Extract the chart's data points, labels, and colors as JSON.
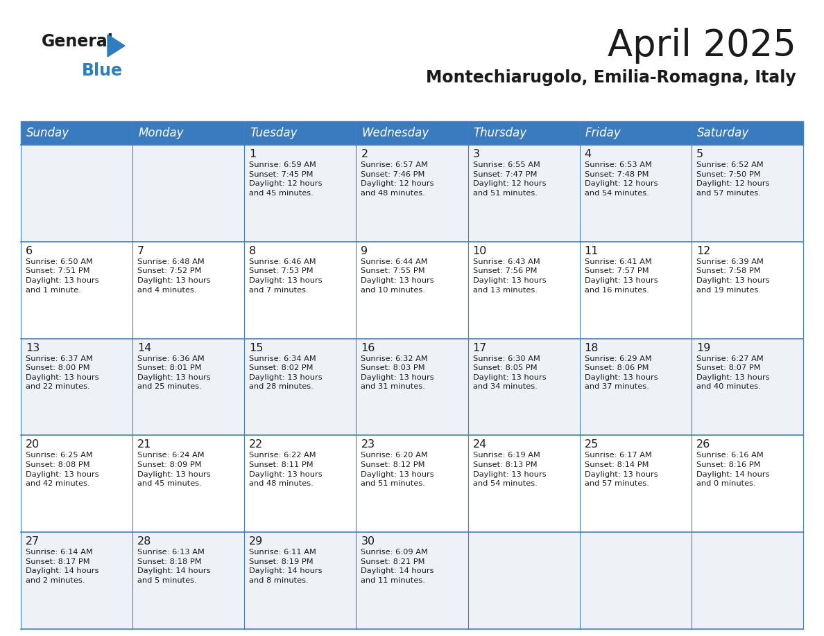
{
  "title": "April 2025",
  "subtitle": "Montechiarugolo, Emilia-Romagna, Italy",
  "header_bg_color": "#3a7bbf",
  "header_text_color": "#ffffff",
  "cell_bg_row0": "#eef2f7",
  "cell_bg_row1": "#ffffff",
  "border_color": "#4080bf",
  "text_color": "#1a1a1a",
  "day_headers": [
    "Sunday",
    "Monday",
    "Tuesday",
    "Wednesday",
    "Thursday",
    "Friday",
    "Saturday"
  ],
  "weeks": [
    [
      {
        "day": "",
        "info": ""
      },
      {
        "day": "",
        "info": ""
      },
      {
        "day": "1",
        "info": "Sunrise: 6:59 AM\nSunset: 7:45 PM\nDaylight: 12 hours\nand 45 minutes."
      },
      {
        "day": "2",
        "info": "Sunrise: 6:57 AM\nSunset: 7:46 PM\nDaylight: 12 hours\nand 48 minutes."
      },
      {
        "day": "3",
        "info": "Sunrise: 6:55 AM\nSunset: 7:47 PM\nDaylight: 12 hours\nand 51 minutes."
      },
      {
        "day": "4",
        "info": "Sunrise: 6:53 AM\nSunset: 7:48 PM\nDaylight: 12 hours\nand 54 minutes."
      },
      {
        "day": "5",
        "info": "Sunrise: 6:52 AM\nSunset: 7:50 PM\nDaylight: 12 hours\nand 57 minutes."
      }
    ],
    [
      {
        "day": "6",
        "info": "Sunrise: 6:50 AM\nSunset: 7:51 PM\nDaylight: 13 hours\nand 1 minute."
      },
      {
        "day": "7",
        "info": "Sunrise: 6:48 AM\nSunset: 7:52 PM\nDaylight: 13 hours\nand 4 minutes."
      },
      {
        "day": "8",
        "info": "Sunrise: 6:46 AM\nSunset: 7:53 PM\nDaylight: 13 hours\nand 7 minutes."
      },
      {
        "day": "9",
        "info": "Sunrise: 6:44 AM\nSunset: 7:55 PM\nDaylight: 13 hours\nand 10 minutes."
      },
      {
        "day": "10",
        "info": "Sunrise: 6:43 AM\nSunset: 7:56 PM\nDaylight: 13 hours\nand 13 minutes."
      },
      {
        "day": "11",
        "info": "Sunrise: 6:41 AM\nSunset: 7:57 PM\nDaylight: 13 hours\nand 16 minutes."
      },
      {
        "day": "12",
        "info": "Sunrise: 6:39 AM\nSunset: 7:58 PM\nDaylight: 13 hours\nand 19 minutes."
      }
    ],
    [
      {
        "day": "13",
        "info": "Sunrise: 6:37 AM\nSunset: 8:00 PM\nDaylight: 13 hours\nand 22 minutes."
      },
      {
        "day": "14",
        "info": "Sunrise: 6:36 AM\nSunset: 8:01 PM\nDaylight: 13 hours\nand 25 minutes."
      },
      {
        "day": "15",
        "info": "Sunrise: 6:34 AM\nSunset: 8:02 PM\nDaylight: 13 hours\nand 28 minutes."
      },
      {
        "day": "16",
        "info": "Sunrise: 6:32 AM\nSunset: 8:03 PM\nDaylight: 13 hours\nand 31 minutes."
      },
      {
        "day": "17",
        "info": "Sunrise: 6:30 AM\nSunset: 8:05 PM\nDaylight: 13 hours\nand 34 minutes."
      },
      {
        "day": "18",
        "info": "Sunrise: 6:29 AM\nSunset: 8:06 PM\nDaylight: 13 hours\nand 37 minutes."
      },
      {
        "day": "19",
        "info": "Sunrise: 6:27 AM\nSunset: 8:07 PM\nDaylight: 13 hours\nand 40 minutes."
      }
    ],
    [
      {
        "day": "20",
        "info": "Sunrise: 6:25 AM\nSunset: 8:08 PM\nDaylight: 13 hours\nand 42 minutes."
      },
      {
        "day": "21",
        "info": "Sunrise: 6:24 AM\nSunset: 8:09 PM\nDaylight: 13 hours\nand 45 minutes."
      },
      {
        "day": "22",
        "info": "Sunrise: 6:22 AM\nSunset: 8:11 PM\nDaylight: 13 hours\nand 48 minutes."
      },
      {
        "day": "23",
        "info": "Sunrise: 6:20 AM\nSunset: 8:12 PM\nDaylight: 13 hours\nand 51 minutes."
      },
      {
        "day": "24",
        "info": "Sunrise: 6:19 AM\nSunset: 8:13 PM\nDaylight: 13 hours\nand 54 minutes."
      },
      {
        "day": "25",
        "info": "Sunrise: 6:17 AM\nSunset: 8:14 PM\nDaylight: 13 hours\nand 57 minutes."
      },
      {
        "day": "26",
        "info": "Sunrise: 6:16 AM\nSunset: 8:16 PM\nDaylight: 14 hours\nand 0 minutes."
      }
    ],
    [
      {
        "day": "27",
        "info": "Sunrise: 6:14 AM\nSunset: 8:17 PM\nDaylight: 14 hours\nand 2 minutes."
      },
      {
        "day": "28",
        "info": "Sunrise: 6:13 AM\nSunset: 8:18 PM\nDaylight: 14 hours\nand 5 minutes."
      },
      {
        "day": "29",
        "info": "Sunrise: 6:11 AM\nSunset: 8:19 PM\nDaylight: 14 hours\nand 8 minutes."
      },
      {
        "day": "30",
        "info": "Sunrise: 6:09 AM\nSunset: 8:21 PM\nDaylight: 14 hours\nand 11 minutes."
      },
      {
        "day": "",
        "info": ""
      },
      {
        "day": "",
        "info": ""
      },
      {
        "day": "",
        "info": ""
      }
    ]
  ]
}
